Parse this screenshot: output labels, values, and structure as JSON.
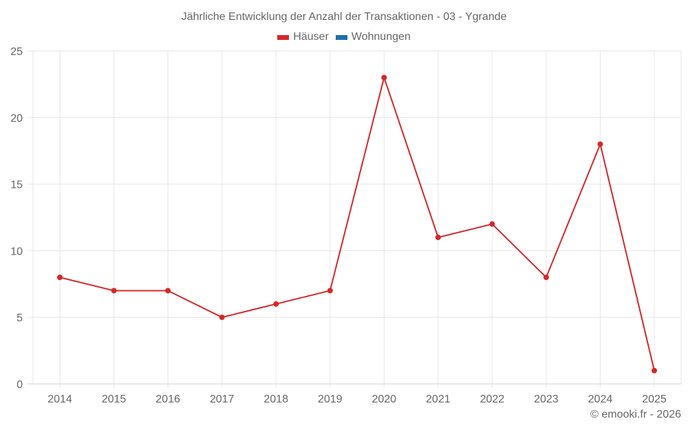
{
  "chart_data": {
    "type": "line",
    "title": "Jährliche Entwicklung der Anzahl der Transaktionen - 03 - Ygrande",
    "xlabel": "",
    "ylabel": "",
    "categories": [
      "2014",
      "2015",
      "2016",
      "2017",
      "2018",
      "2019",
      "2020",
      "2021",
      "2022",
      "2023",
      "2024",
      "2025"
    ],
    "series": [
      {
        "name": "Häuser",
        "color": "#d62728",
        "values": [
          8,
          7,
          7,
          5,
          6,
          7,
          23,
          11,
          12,
          8,
          18,
          1
        ]
      },
      {
        "name": "Wohnungen",
        "color": "#1f6fa8",
        "values": []
      }
    ],
    "yticks": [
      0,
      5,
      10,
      15,
      20,
      25
    ],
    "ylim": [
      0,
      25
    ],
    "grid": true,
    "legend_position": "top"
  },
  "legend": [
    {
      "label": "Häuser",
      "color": "#d62728"
    },
    {
      "label": "Wohnungen",
      "color": "#1f6fa8"
    }
  ],
  "credit": "© emooki.fr - 2026"
}
